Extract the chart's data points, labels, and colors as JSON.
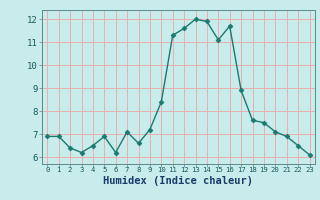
{
  "x": [
    0,
    1,
    2,
    3,
    4,
    5,
    6,
    7,
    8,
    9,
    10,
    11,
    12,
    13,
    14,
    15,
    16,
    17,
    18,
    19,
    20,
    21,
    22,
    23
  ],
  "y": [
    6.9,
    6.9,
    6.4,
    6.2,
    6.5,
    6.9,
    6.2,
    7.1,
    6.6,
    7.2,
    8.4,
    11.3,
    11.6,
    12.0,
    11.9,
    11.1,
    11.7,
    8.9,
    7.6,
    7.5,
    7.1,
    6.9,
    6.5,
    6.1
  ],
  "xlabel": "Humidex (Indice chaleur)",
  "ylim": [
    5.7,
    12.4
  ],
  "xlim": [
    -0.5,
    23.5
  ],
  "yticks": [
    6,
    7,
    8,
    9,
    10,
    11,
    12
  ],
  "xticks": [
    0,
    1,
    2,
    3,
    4,
    5,
    6,
    7,
    8,
    9,
    10,
    11,
    12,
    13,
    14,
    15,
    16,
    17,
    18,
    19,
    20,
    21,
    22,
    23
  ],
  "line_color": "#1a7a6e",
  "marker": "D",
  "marker_size": 2.5,
  "bg_color": "#c8ecec",
  "grid_color": "#e8b0b0",
  "axis_bg": "#c8ecec",
  "xlabel_color": "#1a3a6a",
  "tick_color": "#1a5a5a",
  "spine_color": "#5a8a8a"
}
